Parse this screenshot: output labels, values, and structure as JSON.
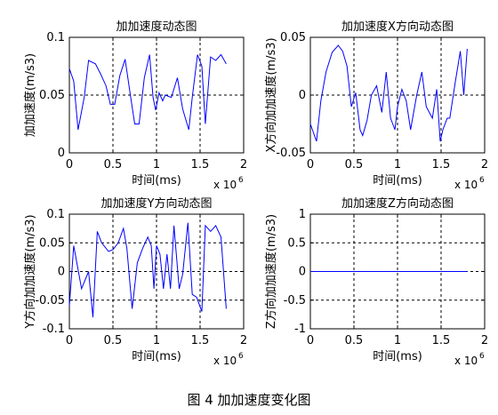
{
  "figure_caption": "图 4  加加速度变化图",
  "chart_data": [
    {
      "type": "line",
      "title": "加加速度动态图",
      "xlabel": "时间(ms)",
      "ylabel": "加加速度(m/s3)",
      "x_multiplier": "x 10",
      "x_multiplier_exp": "6",
      "xlim": [
        0,
        2
      ],
      "ylim": [
        0,
        0.1
      ],
      "xticks": [
        "0",
        "0.5",
        "1",
        "1.5",
        "2"
      ],
      "yticks": [
        "0",
        "0.05",
        "0.1"
      ],
      "grid": true,
      "line_color": "#0000ff",
      "x": [
        0,
        0.05,
        0.1,
        0.17,
        0.22,
        0.3,
        0.36,
        0.42,
        0.47,
        0.52,
        0.58,
        0.64,
        0.7,
        0.75,
        0.8,
        0.86,
        0.92,
        0.96,
        0.99,
        1.03,
        1.07,
        1.1,
        1.17,
        1.24,
        1.3,
        1.37,
        1.41,
        1.47,
        1.52,
        1.56,
        1.62,
        1.68,
        1.74,
        1.8
      ],
      "y": [
        0.073,
        0.062,
        0.02,
        0.048,
        0.08,
        0.077,
        0.068,
        0.058,
        0.042,
        0.042,
        0.067,
        0.081,
        0.05,
        0.025,
        0.025,
        0.065,
        0.085,
        0.048,
        0.037,
        0.052,
        0.045,
        0.05,
        0.048,
        0.065,
        0.038,
        0.02,
        0.048,
        0.085,
        0.075,
        0.025,
        0.083,
        0.08,
        0.085,
        0.077
      ]
    },
    {
      "type": "line",
      "title": "加加速度X方向动态图",
      "xlabel": "时间(ms)",
      "ylabel": "X方向加加速度(m/s3)",
      "x_multiplier": "x 10",
      "x_multiplier_exp": "6",
      "xlim": [
        0,
        2
      ],
      "ylim": [
        -0.05,
        0.05
      ],
      "xticks": [
        "0",
        "0.5",
        "1",
        "1.5",
        "2"
      ],
      "yticks": [
        "-0.05",
        "0",
        "0.05"
      ],
      "grid": true,
      "line_color": "#0000ff",
      "x": [
        0,
        0.07,
        0.12,
        0.18,
        0.25,
        0.32,
        0.37,
        0.42,
        0.47,
        0.52,
        0.57,
        0.6,
        0.65,
        0.7,
        0.76,
        0.82,
        0.87,
        0.92,
        0.97,
        1.0,
        1.05,
        1.1,
        1.15,
        1.22,
        1.28,
        1.33,
        1.4,
        1.45,
        1.49,
        1.52,
        1.57,
        1.6,
        1.66,
        1.72,
        1.76,
        1.8
      ],
      "y": [
        -0.025,
        -0.04,
        -0.005,
        0.02,
        0.037,
        0.043,
        0.038,
        0.025,
        -0.01,
        0.002,
        -0.03,
        -0.035,
        -0.022,
        0.0,
        0.008,
        -0.015,
        0.02,
        -0.02,
        -0.03,
        -0.01,
        0.005,
        -0.005,
        -0.03,
        0.0,
        0.02,
        -0.01,
        -0.02,
        0.005,
        -0.04,
        -0.03,
        -0.02,
        -0.02,
        0.01,
        0.038,
        0.0,
        0.04
      ]
    },
    {
      "type": "line",
      "title": "加加速度Y方向动态图",
      "xlabel": "时间(ms)",
      "ylabel": "Y方向加加速度(m/s3)",
      "x_multiplier": "x 10",
      "x_multiplier_exp": "6",
      "xlim": [
        0,
        2
      ],
      "ylim": [
        -0.1,
        0.1
      ],
      "xticks": [
        "0",
        "0.5",
        "1",
        "1.5",
        "2"
      ],
      "yticks": [
        "-0.1",
        "-0.05",
        "0",
        "0.05",
        "0.1"
      ],
      "grid": true,
      "line_color": "#0000ff",
      "x": [
        0,
        0.05,
        0.14,
        0.22,
        0.27,
        0.32,
        0.37,
        0.45,
        0.5,
        0.56,
        0.62,
        0.66,
        0.72,
        0.78,
        0.84,
        0.9,
        0.94,
        0.97,
        1.0,
        1.04,
        1.08,
        1.12,
        1.16,
        1.2,
        1.26,
        1.3,
        1.36,
        1.41,
        1.46,
        1.52,
        1.56,
        1.62,
        1.68,
        1.74,
        1.8
      ],
      "y": [
        -0.06,
        0.045,
        -0.03,
        0.0,
        -0.08,
        0.07,
        0.05,
        0.035,
        0.038,
        0.05,
        0.075,
        0.04,
        -0.065,
        0.015,
        0.04,
        0.06,
        0.045,
        -0.03,
        0.045,
        0.03,
        -0.03,
        0.03,
        -0.03,
        0.08,
        -0.03,
        -0.005,
        0.085,
        -0.04,
        -0.045,
        -0.07,
        0.08,
        0.07,
        0.08,
        0.06,
        -0.065
      ]
    },
    {
      "type": "line",
      "title": "加加速度Z方向动态图",
      "xlabel": "时间(ms)",
      "ylabel": "Z方向加加速度(m/s3)",
      "x_multiplier": "x 10",
      "x_multiplier_exp": "6",
      "xlim": [
        0,
        2
      ],
      "ylim": [
        -1,
        1
      ],
      "xticks": [
        "0",
        "0.5",
        "1",
        "1.5",
        "2"
      ],
      "yticks": [
        "-1",
        "-0.5",
        "0",
        "0.5",
        "1"
      ],
      "grid": true,
      "line_color": "#0000ff",
      "x": [
        0,
        1.8
      ],
      "y": [
        0,
        0
      ]
    }
  ]
}
